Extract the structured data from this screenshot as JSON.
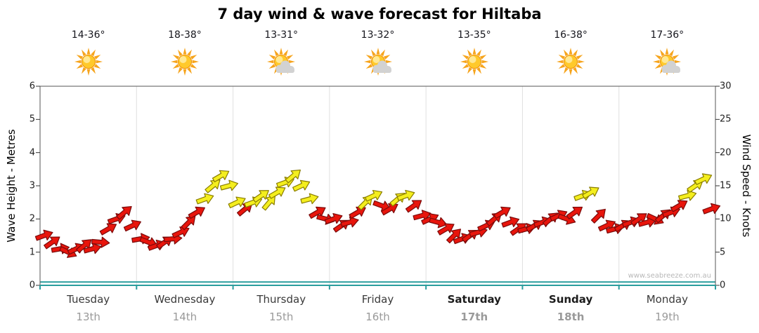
{
  "title": "7 day wind & wave forecast for Hiltaba",
  "watermark": "www.seabreeze.com.au",
  "axes": {
    "left": {
      "label": "Wave Height - Metres",
      "ticks": [
        0,
        1,
        2,
        3,
        4,
        5,
        6
      ],
      "max": 6
    },
    "right": {
      "label": "Wind Speed - Knots",
      "ticks": [
        0,
        5,
        10,
        15,
        20,
        25,
        30
      ],
      "max": 30
    }
  },
  "days": [
    {
      "name": "Tuesday",
      "date": "13th",
      "temp": "14-36°",
      "icon": "sun",
      "weekend": false
    },
    {
      "name": "Wednesday",
      "date": "14th",
      "temp": "18-38°",
      "icon": "sun",
      "weekend": false
    },
    {
      "name": "Thursday",
      "date": "15th",
      "temp": "13-31°",
      "icon": "sun-cloud",
      "weekend": false
    },
    {
      "name": "Friday",
      "date": "16th",
      "temp": "13-32°",
      "icon": "sun-cloud",
      "weekend": false
    },
    {
      "name": "Saturday",
      "date": "17th",
      "temp": "13-35°",
      "icon": "sun",
      "weekend": true
    },
    {
      "name": "Sunday",
      "date": "18th",
      "temp": "16-38°",
      "icon": "sun",
      "weekend": true
    },
    {
      "name": "Monday",
      "date": "19th",
      "temp": "17-36°",
      "icon": "sun-cloud",
      "weekend": false
    }
  ],
  "colors": {
    "arrow_red": "#e8150c",
    "arrow_red_stroke": "#7a0b0b",
    "arrow_yellow": "#f4ee1e",
    "arrow_yellow_stroke": "#8a7d00",
    "wave_line": "#2a9d9d",
    "frame": "#555555",
    "separator": "#e0e0e0",
    "tick": "#333333",
    "sun_body": "#ffc92b",
    "sun_ray": "#f6a41c",
    "sun_core": "#ffeb9e",
    "sun_edge": "#f09000",
    "cloud": "#d2d2d2"
  },
  "chart_data": {
    "type": "line",
    "title": "7 day wind & wave forecast for Hiltaba",
    "x": {
      "days": [
        "Tuesday 13th",
        "Wednesday 14th",
        "Thursday 15th",
        "Friday 16th",
        "Saturday 17th",
        "Sunday 18th",
        "Monday 19th"
      ],
      "points_per_day": 12,
      "interval_hours": 2
    },
    "y_left": {
      "label": "Wave Height - Metres",
      "range": [
        0,
        6
      ]
    },
    "y_right": {
      "label": "Wind Speed - Knots",
      "range": [
        0,
        30
      ]
    },
    "grid": "day-separators",
    "legend": "none",
    "series": [
      {
        "name": "Wind Speed",
        "axis": "right",
        "unit": "knots",
        "style": "wind-arrows",
        "speeds_knots": [
          7.5,
          6.5,
          5.5,
          5,
          5.5,
          6,
          5.5,
          6.5,
          8.5,
          10,
          11,
          9,
          7,
          6.5,
          6,
          6.5,
          7,
          8,
          9.5,
          11,
          13,
          15,
          16.5,
          15,
          12.5,
          11.5,
          12.5,
          13.5,
          12.5,
          14,
          15.5,
          16.5,
          15,
          13,
          11,
          10,
          10,
          9,
          9.5,
          11,
          12.5,
          13.5,
          12,
          11.5,
          13,
          13.5,
          12,
          10.5,
          10,
          9.5,
          8.5,
          7.5,
          7,
          7.5,
          8,
          9,
          10,
          11,
          9.5,
          8.5,
          8.5,
          9,
          9.5,
          10,
          10.5,
          10,
          11,
          13.5,
          14,
          10.5,
          9,
          8.5,
          9,
          9.5,
          10,
          9.5,
          10,
          10.5,
          11,
          12,
          13.5,
          15,
          16,
          11.5
        ],
        "directions_deg": [
          -20,
          -35,
          -10,
          25,
          -25,
          -40,
          -15,
          5,
          -30,
          -20,
          -40,
          -25,
          -10,
          20,
          -20,
          -35,
          -5,
          -25,
          -45,
          -30,
          -20,
          -40,
          -30,
          -15,
          -25,
          -40,
          -20,
          -35,
          -50,
          -30,
          -20,
          -40,
          -25,
          -15,
          -30,
          15,
          -20,
          -35,
          -15,
          -30,
          -45,
          -25,
          20,
          -30,
          -40,
          -20,
          -35,
          -15,
          -25,
          15,
          -30,
          -45,
          -20,
          -35,
          -15,
          -25,
          -40,
          -30,
          -20,
          -35,
          -15,
          -30,
          -20,
          -40,
          -25,
          20,
          -35,
          -20,
          -30,
          -45,
          -25,
          -15,
          -30,
          -20,
          -35,
          -15,
          25,
          -40,
          -20,
          -30,
          -15,
          -35,
          -25,
          -20
        ],
        "colors": [
          "red",
          "red",
          "red",
          "red",
          "red",
          "red",
          "red",
          "red",
          "red",
          "red",
          "red",
          "red",
          "red",
          "red",
          "red",
          "red",
          "red",
          "red",
          "red",
          "red",
          "yellow",
          "yellow",
          "yellow",
          "yellow",
          "yellow",
          "red",
          "yellow",
          "yellow",
          "yellow",
          "yellow",
          "yellow",
          "yellow",
          "yellow",
          "yellow",
          "red",
          "red",
          "red",
          "red",
          "red",
          "red",
          "yellow",
          "yellow",
          "red",
          "red",
          "yellow",
          "yellow",
          "red",
          "red",
          "red",
          "red",
          "red",
          "red",
          "red",
          "red",
          "red",
          "red",
          "red",
          "red",
          "red",
          "red",
          "red",
          "red",
          "red",
          "red",
          "red",
          "red",
          "red",
          "yellow",
          "yellow",
          "red",
          "red",
          "red",
          "red",
          "red",
          "red",
          "red",
          "red",
          "red",
          "red",
          "red",
          "yellow",
          "yellow",
          "yellow",
          "red"
        ]
      },
      {
        "name": "Wave Height",
        "axis": "left",
        "unit": "metres",
        "style": "line",
        "color": "#2a9d9d",
        "daily_values": [
          0.1,
          0.1,
          0.1,
          0.1,
          0.1,
          0.1,
          0.1
        ]
      }
    ]
  }
}
